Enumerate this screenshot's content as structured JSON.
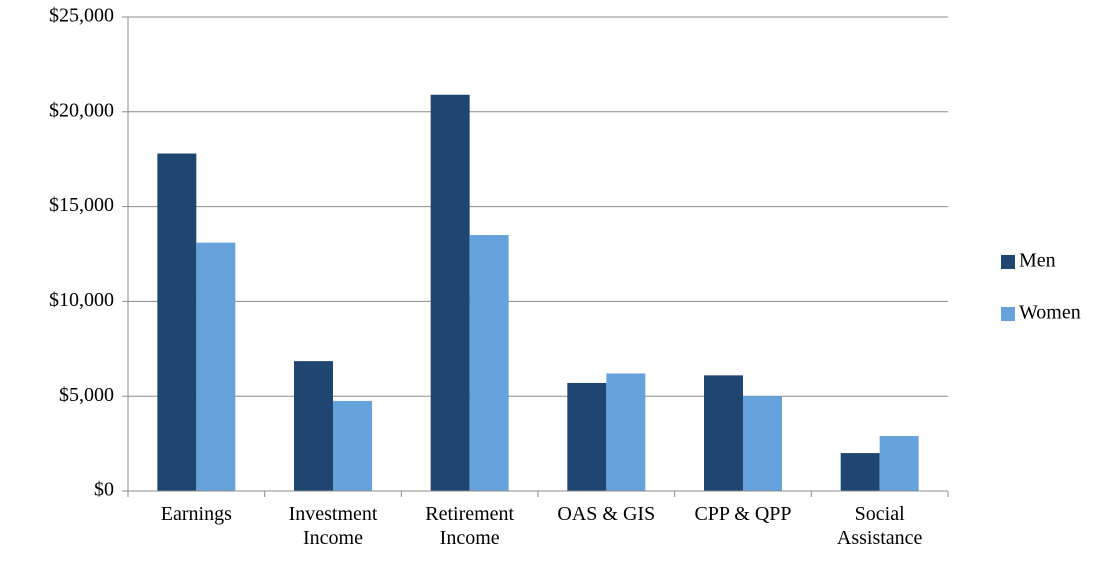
{
  "chart_data": {
    "type": "bar",
    "categories": [
      "Earnings",
      "Investment\nIncome",
      "Retirement\nIncome",
      "OAS & GIS",
      "CPP & QPP",
      "Social\nAssistance"
    ],
    "series": [
      {
        "name": "Men",
        "color": "#1f4670",
        "values": [
          17800,
          6850,
          20900,
          5700,
          6100,
          2000
        ]
      },
      {
        "name": "Women",
        "color": "#66a3dc",
        "values": [
          13100,
          4750,
          13500,
          6200,
          5000,
          2900
        ]
      }
    ],
    "ylim": [
      0,
      25000
    ],
    "yticks": [
      {
        "value": 0,
        "label": "$0"
      },
      {
        "value": 5000,
        "label": "$5,000"
      },
      {
        "value": 10000,
        "label": "$10,000"
      },
      {
        "value": 15000,
        "label": "$15,000"
      },
      {
        "value": 20000,
        "label": "$20,000"
      },
      {
        "value": 25000,
        "label": "$25,000"
      }
    ],
    "grid": true,
    "legend": "right"
  }
}
